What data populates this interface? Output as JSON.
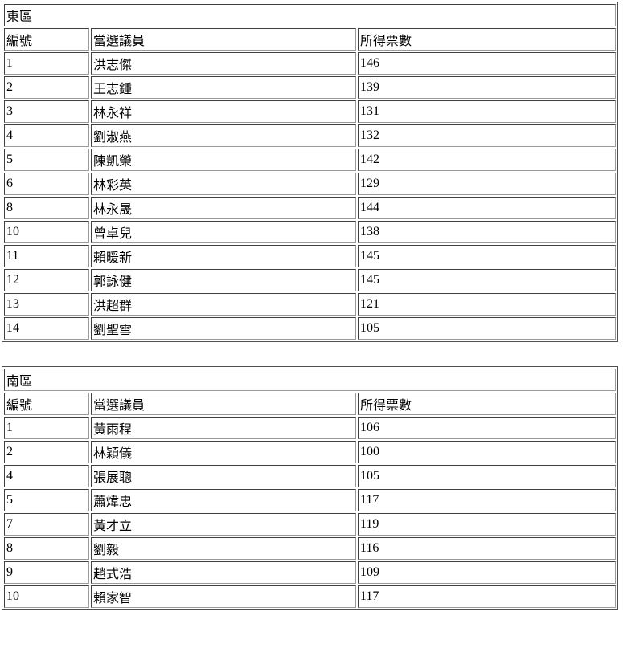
{
  "page": {
    "background_color": "#ffffff",
    "text_color": "#000000",
    "border_color": "#4f4f4f"
  },
  "tables": [
    {
      "title": "東區",
      "headers": [
        "編號",
        "當選議員",
        "所得票數"
      ],
      "rows": [
        [
          "1",
          "洪志傑",
          "146"
        ],
        [
          "2",
          "王志鍾",
          "139"
        ],
        [
          "3",
          "林永祥",
          "131"
        ],
        [
          "4",
          "劉淑燕",
          "132"
        ],
        [
          "5",
          "陳凱榮",
          "142"
        ],
        [
          "6",
          "林彩英",
          "129"
        ],
        [
          "8",
          "林永晟",
          "144"
        ],
        [
          "10",
          "曾卓兒",
          "138"
        ],
        [
          "11",
          "賴暖新",
          "145"
        ],
        [
          "12",
          "郭詠健",
          "145"
        ],
        [
          "13",
          "洪超群",
          "121"
        ],
        [
          "14",
          "劉聖雪",
          "105"
        ]
      ]
    },
    {
      "title": "南區",
      "headers": [
        "編號",
        "當選議員",
        "所得票數"
      ],
      "rows": [
        [
          "1",
          "黃雨程",
          "106"
        ],
        [
          "2",
          "林穎儀",
          "100"
        ],
        [
          "4",
          "張展聰",
          "105"
        ],
        [
          "5",
          "蕭煒忠",
          "117"
        ],
        [
          "7",
          "黃才立",
          "119"
        ],
        [
          "8",
          "劉毅",
          "116"
        ],
        [
          "9",
          "趙式浩",
          "109"
        ],
        [
          "10",
          "賴家智",
          "117"
        ]
      ]
    }
  ]
}
